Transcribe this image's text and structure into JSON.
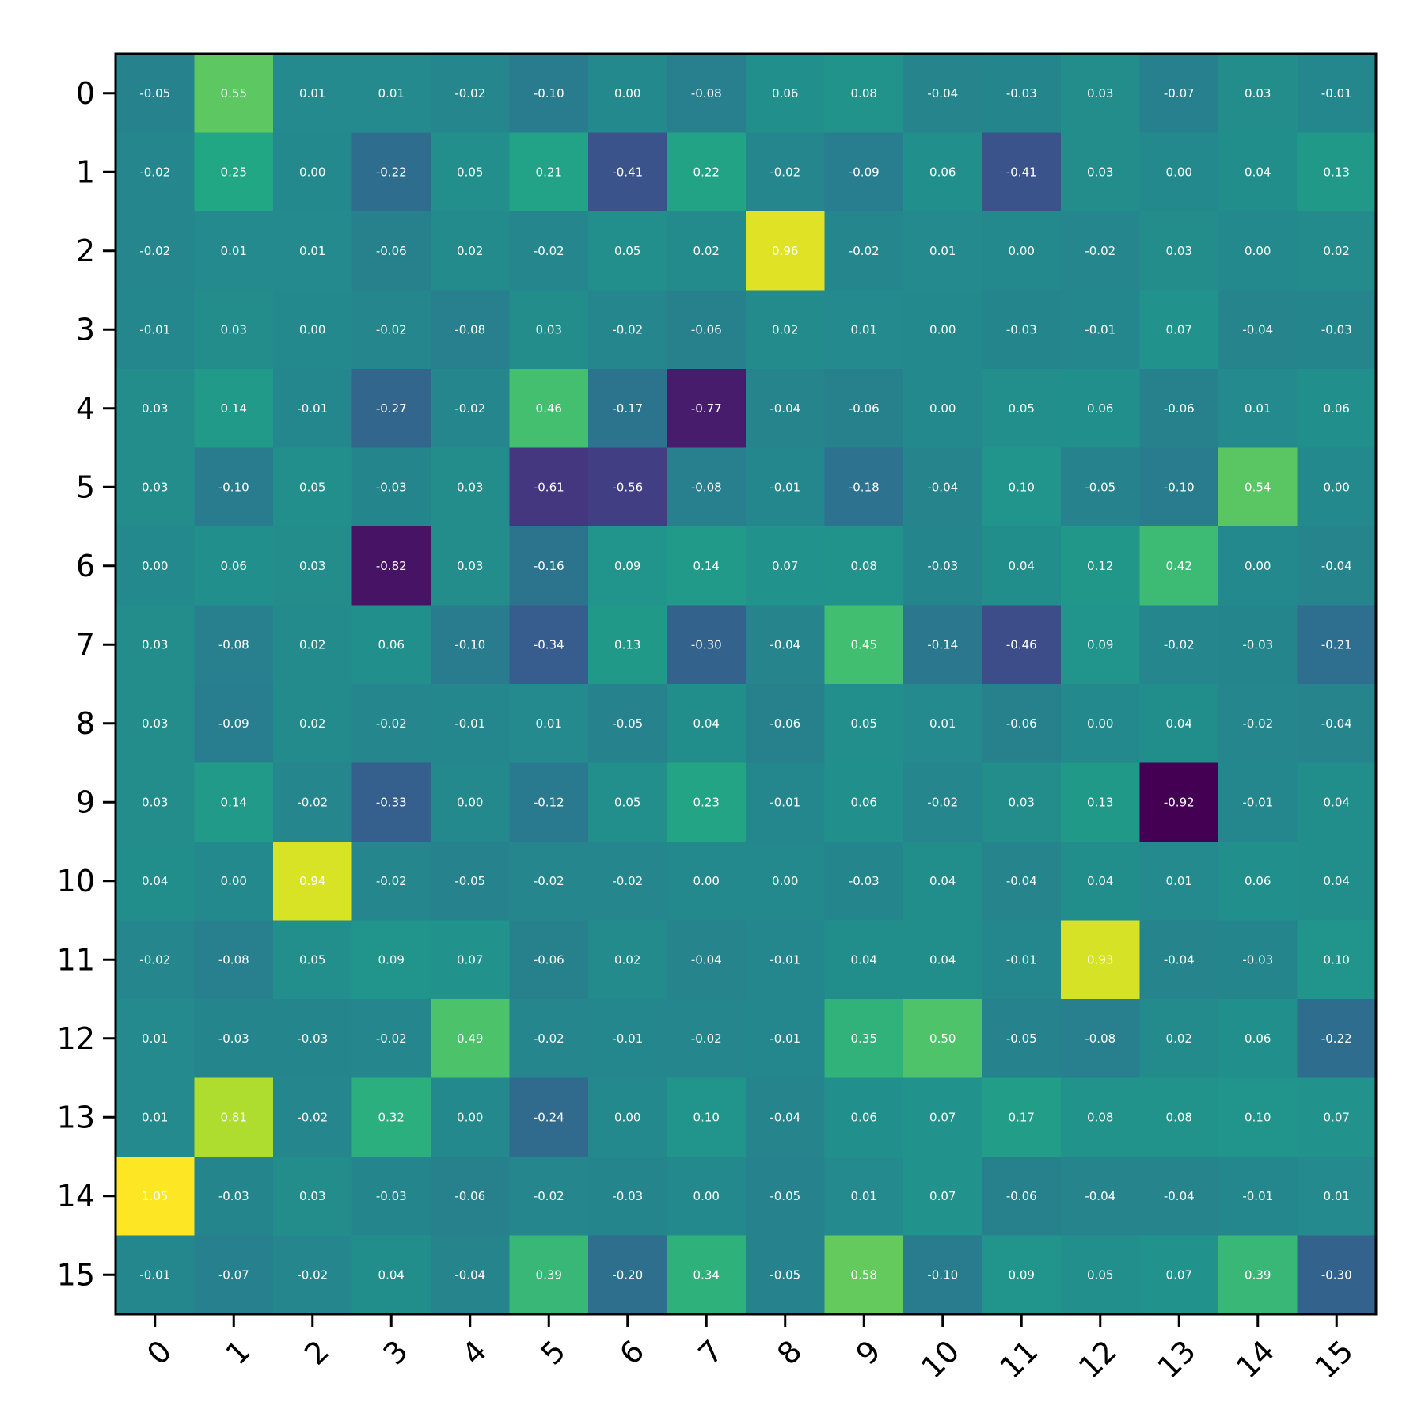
{
  "chart_data": {
    "type": "heatmap",
    "colormap": "viridis",
    "color_range": [
      -0.92,
      1.05
    ],
    "x_categories": [
      "0",
      "1",
      "2",
      "3",
      "4",
      "5",
      "6",
      "7",
      "8",
      "9",
      "10",
      "11",
      "12",
      "13",
      "14",
      "15"
    ],
    "y_categories": [
      "0",
      "1",
      "2",
      "3",
      "4",
      "5",
      "6",
      "7",
      "8",
      "9",
      "10",
      "11",
      "12",
      "13",
      "14",
      "15"
    ],
    "grid": false,
    "values": [
      [
        -0.05,
        0.55,
        0.01,
        0.01,
        -0.02,
        -0.1,
        0.0,
        -0.08,
        0.06,
        0.08,
        -0.04,
        -0.03,
        0.03,
        -0.07,
        0.03,
        -0.01
      ],
      [
        -0.02,
        0.25,
        0.0,
        -0.22,
        0.05,
        0.21,
        -0.41,
        0.22,
        -0.02,
        -0.09,
        0.06,
        -0.41,
        0.03,
        0.0,
        0.04,
        0.13
      ],
      [
        -0.02,
        0.01,
        0.01,
        -0.06,
        0.02,
        -0.02,
        0.05,
        0.02,
        0.96,
        -0.02,
        0.01,
        -0.0,
        -0.02,
        0.03,
        0.0,
        0.02
      ],
      [
        -0.01,
        0.03,
        -0.0,
        -0.02,
        -0.08,
        0.03,
        -0.02,
        -0.06,
        0.02,
        0.01,
        0.0,
        -0.03,
        -0.01,
        0.07,
        -0.04,
        -0.03
      ],
      [
        0.03,
        0.14,
        -0.01,
        -0.27,
        -0.02,
        0.46,
        -0.17,
        -0.77,
        -0.04,
        -0.06,
        0.0,
        0.05,
        0.06,
        -0.06,
        0.01,
        0.06
      ],
      [
        0.03,
        -0.1,
        0.05,
        -0.03,
        0.03,
        -0.61,
        -0.56,
        -0.08,
        -0.01,
        -0.18,
        -0.04,
        0.1,
        -0.05,
        -0.1,
        0.54,
        -0.0
      ],
      [
        0.0,
        0.06,
        0.03,
        -0.82,
        0.03,
        -0.16,
        0.09,
        0.14,
        0.07,
        0.08,
        -0.03,
        0.04,
        0.12,
        0.42,
        0.0,
        -0.04
      ],
      [
        0.03,
        -0.08,
        0.02,
        0.06,
        -0.1,
        -0.34,
        0.13,
        -0.3,
        -0.04,
        0.45,
        -0.14,
        -0.46,
        0.09,
        -0.02,
        -0.03,
        -0.21
      ],
      [
        0.03,
        -0.09,
        0.02,
        -0.02,
        -0.01,
        0.01,
        -0.05,
        0.04,
        -0.06,
        0.05,
        0.01,
        -0.06,
        0.0,
        0.04,
        -0.02,
        -0.04
      ],
      [
        0.03,
        0.14,
        -0.02,
        -0.33,
        -0.0,
        -0.12,
        0.05,
        0.23,
        -0.01,
        0.06,
        -0.02,
        0.03,
        0.13,
        -0.92,
        -0.01,
        0.04
      ],
      [
        0.04,
        -0.0,
        0.94,
        -0.02,
        -0.05,
        -0.02,
        -0.02,
        0.0,
        -0.0,
        -0.03,
        0.04,
        -0.04,
        0.04,
        0.01,
        0.06,
        0.04
      ],
      [
        -0.02,
        -0.08,
        0.05,
        0.09,
        0.07,
        -0.06,
        0.02,
        -0.04,
        -0.01,
        0.04,
        0.04,
        -0.01,
        0.93,
        -0.04,
        -0.03,
        0.1
      ],
      [
        0.01,
        -0.03,
        -0.03,
        -0.02,
        0.49,
        -0.02,
        -0.01,
        -0.02,
        -0.01,
        0.35,
        0.5,
        -0.05,
        -0.08,
        0.02,
        0.06,
        -0.22
      ],
      [
        0.01,
        0.81,
        -0.02,
        0.32,
        0.0,
        -0.24,
        -0.0,
        0.1,
        -0.04,
        0.06,
        0.07,
        0.17,
        0.08,
        0.08,
        0.1,
        0.07
      ],
      [
        1.05,
        -0.03,
        0.03,
        -0.03,
        -0.06,
        -0.02,
        -0.03,
        -0.0,
        -0.05,
        0.01,
        0.07,
        -0.06,
        -0.04,
        -0.04,
        -0.01,
        0.01
      ],
      [
        -0.01,
        -0.07,
        -0.02,
        0.04,
        -0.04,
        0.39,
        -0.2,
        0.34,
        -0.05,
        0.58,
        -0.1,
        0.09,
        0.05,
        0.07,
        0.39,
        -0.3
      ]
    ]
  }
}
